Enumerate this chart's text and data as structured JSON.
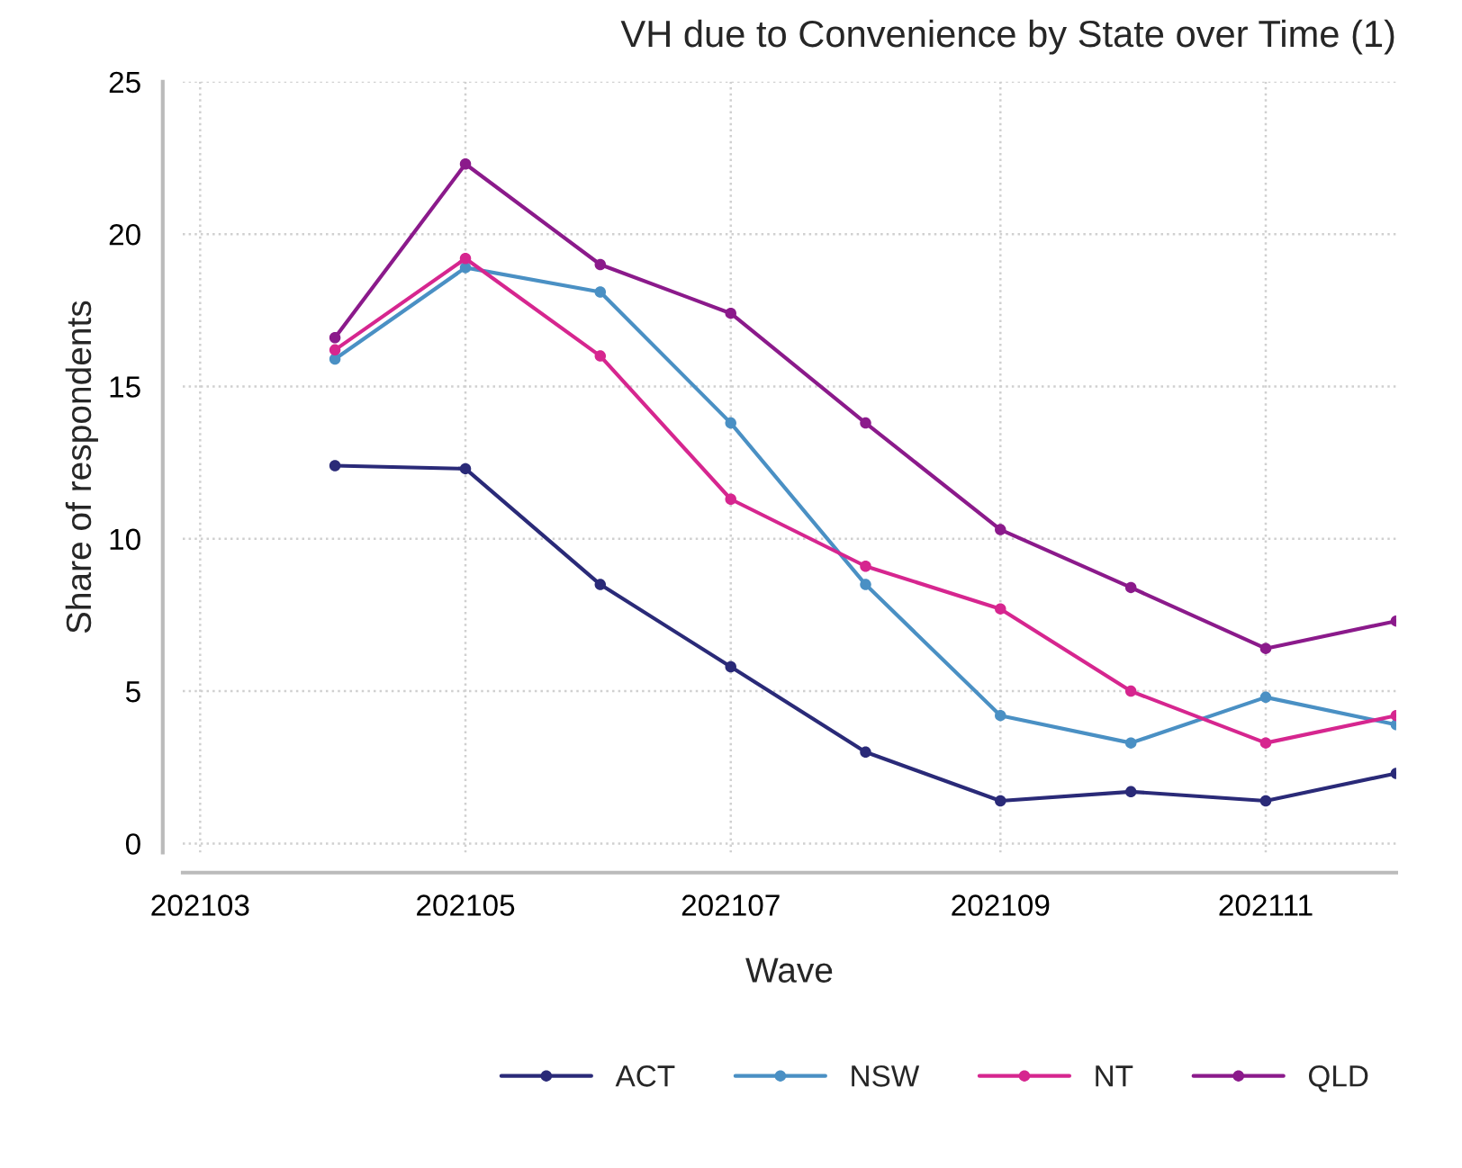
{
  "chart_data": {
    "type": "line",
    "title": "VH due to Convenience by State over Time (1)",
    "xlabel": "Wave",
    "ylabel": "Share of respondents",
    "x": [
      "2021-04",
      "2021-05",
      "2021-06",
      "2021-07",
      "2021-08",
      "2021-09",
      "2021-10",
      "2021-11",
      "2021-12"
    ],
    "series": [
      {
        "name": "ACT",
        "color": "#2a2a78",
        "values": [
          12.4,
          12.3,
          8.5,
          5.8,
          3.0,
          1.4,
          1.7,
          1.4,
          2.3
        ]
      },
      {
        "name": "NSW",
        "color": "#4a90c4",
        "values": [
          15.9,
          18.9,
          18.1,
          13.8,
          8.5,
          4.2,
          3.3,
          4.8,
          3.9
        ]
      },
      {
        "name": "NT",
        "color": "#d6268f",
        "values": [
          16.2,
          19.2,
          16.0,
          11.3,
          9.1,
          7.7,
          5.0,
          3.3,
          4.2
        ]
      },
      {
        "name": "QLD",
        "color": "#8b1a8b",
        "values": [
          16.6,
          22.3,
          19.0,
          17.4,
          13.8,
          10.3,
          8.4,
          6.4,
          7.3
        ]
      }
    ],
    "xlim": [
      "2021-02-25",
      "2021-12-01"
    ],
    "xticks": [
      {
        "value": "2021-03",
        "label": "202103"
      },
      {
        "value": "2021-05",
        "label": "202105"
      },
      {
        "value": "2021-07",
        "label": "202107"
      },
      {
        "value": "2021-09",
        "label": "202109"
      },
      {
        "value": "2021-11",
        "label": "202111"
      }
    ],
    "ylim": [
      -0.3,
      25
    ],
    "yticks": [
      0,
      5,
      10,
      15,
      20,
      25
    ],
    "grid": true,
    "legend": "bottom",
    "marker": "circle",
    "line_style": "solid"
  }
}
